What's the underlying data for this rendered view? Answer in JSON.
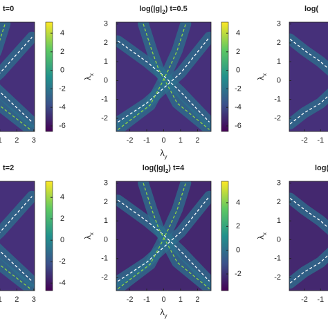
{
  "chart_data": [
    {
      "type": "contour",
      "title": [
        {
          "text": "t=0"
        }
      ],
      "xlim": [
        -3,
        3.05
      ],
      "ylim": [
        -2.7,
        3.1
      ],
      "xticks": [
        1,
        2,
        3
      ],
      "yticks": [],
      "xlabel": [],
      "ylabel": [],
      "background": "#46307a",
      "band_color": "#2c728e",
      "colormap": [
        "#440154",
        "#3b528b",
        "#21918c",
        "#5ec962",
        "#fde725"
      ],
      "colorbar": {
        "lim": [
          -6.6,
          5.2
        ],
        "ticks": [
          4,
          2,
          0,
          -2,
          -4,
          -6
        ]
      },
      "curves": [
        {
          "color": "#ffffff",
          "x": [
            -2.7,
            -1,
            0,
            1,
            2.9
          ],
          "y": [
            2.1,
            1.0,
            0.25,
            -0.6,
            -2.2
          ]
        },
        {
          "color": "#ffffff",
          "x": [
            -2.7,
            -1,
            0,
            1,
            2.9
          ],
          "y": [
            -2.2,
            -1.2,
            -0.4,
            0.4,
            2.3
          ]
        },
        {
          "color": "#8fd744",
          "x": [
            -1.2,
            -0.7,
            -0.3,
            0.2,
            0.8,
            2.8
          ],
          "y": [
            3.0,
            1.6,
            0.6,
            -0.2,
            -1.2,
            -2.6
          ]
        },
        {
          "color": "#8fd744",
          "x": [
            -2.7,
            -0.8,
            -0.2,
            0.3,
            0.8,
            1.3
          ],
          "y": [
            -2.6,
            -1.3,
            -0.3,
            0.6,
            1.6,
            3.0
          ]
        }
      ]
    },
    {
      "type": "contour",
      "title": [
        {
          "text": "log(|g|"
        },
        {
          "text": "2",
          "sub": true
        },
        {
          "text": ") t=0.5"
        }
      ],
      "xlim": [
        -2.8,
        2.8
      ],
      "ylim": [
        -2.7,
        3.1
      ],
      "xticks": [
        -2,
        -1,
        0,
        1,
        2
      ],
      "yticks": [
        3,
        2,
        1,
        0,
        -1,
        -2
      ],
      "xlabel": [
        {
          "text": "λ"
        },
        {
          "text": "y",
          "sub": true
        }
      ],
      "ylabel": [
        {
          "text": "λ"
        },
        {
          "text": "x",
          "sub": true
        }
      ],
      "background": "#46307a",
      "band_color": "#2c728e",
      "colormap": [
        "#440154",
        "#3b528b",
        "#21918c",
        "#5ec962",
        "#fde725"
      ],
      "colorbar": {
        "lim": [
          -6.6,
          5.2
        ],
        "ticks": [
          4,
          2,
          0,
          -2,
          -4,
          -6
        ]
      },
      "curves": [
        {
          "color": "#ffffff",
          "x": [
            -2.7,
            -1,
            0,
            1,
            2.7
          ],
          "y": [
            2.1,
            1.0,
            0.25,
            -0.6,
            -2.2
          ]
        },
        {
          "color": "#ffffff",
          "x": [
            -2.7,
            -1,
            0,
            1,
            2.7
          ],
          "y": [
            -2.2,
            -1.2,
            -0.4,
            0.4,
            2.3
          ]
        },
        {
          "color": "#8fd744",
          "x": [
            -1.2,
            -0.7,
            -0.3,
            0.2,
            0.8,
            2.7
          ],
          "y": [
            3.0,
            1.6,
            0.6,
            -0.2,
            -1.2,
            -2.6
          ]
        },
        {
          "color": "#8fd744",
          "x": [
            -2.7,
            -0.8,
            -0.2,
            0.3,
            0.8,
            1.3
          ],
          "y": [
            -2.6,
            -1.3,
            -0.3,
            0.6,
            1.6,
            3.0
          ]
        }
      ]
    },
    {
      "type": "contour",
      "title": [
        {
          "text": "log("
        }
      ],
      "xlim": [
        -2.95,
        3
      ],
      "ylim": [
        -2.7,
        3.1
      ],
      "xticks": [
        -2,
        -1
      ],
      "yticks": [
        3,
        2,
        1,
        0,
        -1,
        -2
      ],
      "xlabel": [],
      "ylabel": [
        {
          "text": "λ"
        },
        {
          "text": "x",
          "sub": true
        }
      ],
      "background": "#46307a",
      "band_color": "#2c728e",
      "colormap": [
        "#440154",
        "#3b528b",
        "#21918c",
        "#5ec962",
        "#fde725"
      ],
      "curves": [
        {
          "color": "#ffffff",
          "x": [
            -2.9,
            -2,
            -1,
            0
          ],
          "y": [
            2.2,
            1.6,
            1.0,
            0.25
          ]
        },
        {
          "color": "#ffffff",
          "x": [
            -2.9,
            -2,
            -1,
            0
          ],
          "y": [
            -2.3,
            -1.7,
            -1.2,
            -0.4
          ]
        }
      ]
    },
    {
      "type": "contour",
      "title": [
        {
          "text": "t=2"
        }
      ],
      "xlim": [
        -3,
        3.05
      ],
      "ylim": [
        -2.7,
        3.1
      ],
      "xticks": [
        1,
        2,
        3
      ],
      "yticks": [],
      "xlabel": [],
      "ylabel": [],
      "background": "#46307a",
      "band_color": "#2c728e",
      "colormap": [
        "#440154",
        "#3b528b",
        "#21918c",
        "#5ec962",
        "#fde725"
      ],
      "colorbar": {
        "lim": [
          -4.7,
          5.5
        ],
        "ticks": [
          4,
          2,
          0,
          -2,
          -4
        ]
      },
      "curves": [
        {
          "color": "#ffffff",
          "x": [
            -2.7,
            -1,
            0,
            1,
            2.9
          ],
          "y": [
            2.1,
            1.0,
            0.25,
            -0.6,
            -2.2
          ]
        },
        {
          "color": "#ffffff",
          "x": [
            -2.7,
            -1,
            0,
            1,
            2.9
          ],
          "y": [
            -2.2,
            -1.2,
            -0.4,
            0.4,
            2.3
          ]
        },
        {
          "color": "#8fd744",
          "x": [
            -1.2,
            -0.7,
            -0.3,
            0.2,
            0.8,
            2.8
          ],
          "y": [
            3.0,
            1.6,
            0.6,
            -0.2,
            -1.2,
            -2.6
          ]
        }
      ]
    },
    {
      "type": "contour",
      "title": [
        {
          "text": "log(|g|"
        },
        {
          "text": "2",
          "sub": true
        },
        {
          "text": ") t=4"
        }
      ],
      "xlim": [
        -2.8,
        2.8
      ],
      "ylim": [
        -2.7,
        3.1
      ],
      "xticks": [
        -2,
        -1,
        0,
        1,
        2
      ],
      "yticks": [
        3,
        2,
        1,
        0,
        -1,
        -2
      ],
      "xlabel": [
        {
          "text": "λ"
        },
        {
          "text": "y",
          "sub": true
        }
      ],
      "ylabel": [
        {
          "text": "λ"
        },
        {
          "text": "x",
          "sub": true
        }
      ],
      "background": "#44286f",
      "band_color": "#2c728e",
      "colormap": [
        "#440154",
        "#3b528b",
        "#21918c",
        "#5ec962",
        "#fde725"
      ],
      "colorbar": {
        "lim": [
          -3.4,
          5.8
        ],
        "ticks": [
          4,
          2,
          0,
          -2
        ]
      },
      "curves": [
        {
          "color": "#ffffff",
          "x": [
            -2.7,
            -1,
            0,
            1,
            2.7
          ],
          "y": [
            2.1,
            1.0,
            0.25,
            -0.6,
            -2.2
          ]
        },
        {
          "color": "#ffffff",
          "x": [
            -2.7,
            -1,
            0,
            1,
            2.7
          ],
          "y": [
            -2.2,
            -1.2,
            -0.4,
            0.4,
            2.3
          ]
        },
        {
          "color": "#8fd744",
          "x": [
            -1.2,
            -0.7,
            -0.3,
            0.2,
            0.8,
            2.7
          ],
          "y": [
            3.0,
            1.6,
            0.6,
            -0.2,
            -1.2,
            -2.6
          ]
        },
        {
          "color": "#8fd744",
          "x": [
            -2.7,
            -0.8,
            -0.2,
            0.3,
            0.8,
            1.3
          ],
          "y": [
            -2.6,
            -1.3,
            -0.3,
            0.6,
            1.6,
            3.0
          ]
        }
      ]
    },
    {
      "type": "contour",
      "title": [
        {
          "text": "log("
        }
      ],
      "xlim": [
        -2.95,
        3
      ],
      "ylim": [
        -2.7,
        3.1
      ],
      "xticks": [
        -2,
        -1
      ],
      "yticks": [
        3,
        2,
        1,
        0,
        -1,
        -2
      ],
      "xlabel": [],
      "ylabel": [
        {
          "text": "λ"
        },
        {
          "text": "x",
          "sub": true
        }
      ],
      "background": "#44286f",
      "band_color": "#2c728e",
      "colormap": [
        "#440154",
        "#3b528b",
        "#21918c",
        "#5ec962",
        "#fde725"
      ],
      "curves": [
        {
          "color": "#ffffff",
          "x": [
            -2.9,
            -2,
            -1,
            0
          ],
          "y": [
            2.2,
            1.6,
            1.0,
            0.25
          ]
        },
        {
          "color": "#ffffff",
          "x": [
            -2.9,
            -2,
            -1,
            0
          ],
          "y": [
            -2.3,
            -1.7,
            -1.2,
            -0.4
          ]
        }
      ]
    }
  ]
}
